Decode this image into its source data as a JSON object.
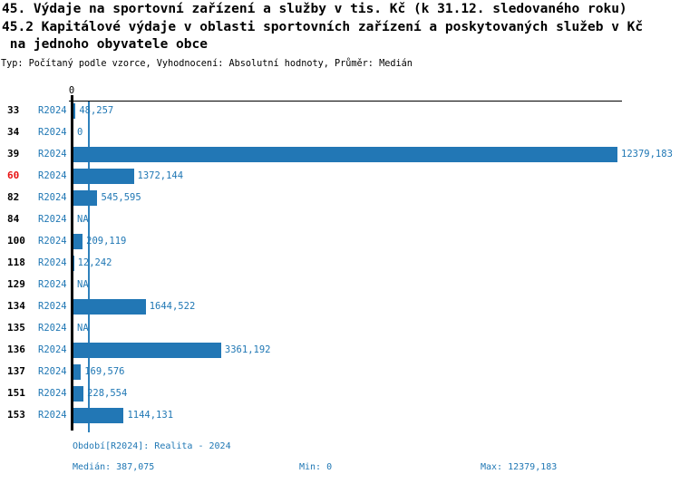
{
  "chart_data": {
    "type": "bar",
    "orientation": "horizontal",
    "title_lines": [
      "45. Výdaje na sportovní zařízení a služby v tis. Kč (k 31.12. sledovaného roku)",
      "45.2 Kapitálové výdaje v oblasti sportovních zařízení a poskytovaných služeb v Kč",
      " na jednoho obyvatele obce"
    ],
    "subtitle": "Typ: Počítaný podle vzorce, Vyhodnocení: Absolutní hodnoty, Průměr: Medián",
    "axis": {
      "zero_tick_label": "0",
      "xlim": [
        0,
        12379.183
      ],
      "grid": false
    },
    "median_line_value": 387.075,
    "series_name": "R2024",
    "rows": [
      {
        "id": "33",
        "period": "R2024",
        "value": 48.257,
        "value_label": "48,257",
        "highlight": false
      },
      {
        "id": "34",
        "period": "R2024",
        "value": 0,
        "value_label": "0",
        "highlight": false
      },
      {
        "id": "39",
        "period": "R2024",
        "value": 12379.183,
        "value_label": "12379,183",
        "highlight": false
      },
      {
        "id": "60",
        "period": "R2024",
        "value": 1372.144,
        "value_label": "1372,144",
        "highlight": true
      },
      {
        "id": "82",
        "period": "R2024",
        "value": 545.595,
        "value_label": "545,595",
        "highlight": false
      },
      {
        "id": "84",
        "period": "R2024",
        "value": null,
        "value_label": "NA",
        "highlight": false
      },
      {
        "id": "100",
        "period": "R2024",
        "value": 209.119,
        "value_label": "209,119",
        "highlight": false
      },
      {
        "id": "118",
        "period": "R2024",
        "value": 12.242,
        "value_label": "12,242",
        "highlight": false
      },
      {
        "id": "129",
        "period": "R2024",
        "value": null,
        "value_label": "NA",
        "highlight": false
      },
      {
        "id": "134",
        "period": "R2024",
        "value": 1644.522,
        "value_label": "1644,522",
        "highlight": false
      },
      {
        "id": "135",
        "period": "R2024",
        "value": null,
        "value_label": "NA",
        "highlight": false
      },
      {
        "id": "136",
        "period": "R2024",
        "value": 3361.192,
        "value_label": "3361,192",
        "highlight": false
      },
      {
        "id": "137",
        "period": "R2024",
        "value": 169.576,
        "value_label": "169,576",
        "highlight": false
      },
      {
        "id": "151",
        "period": "R2024",
        "value": 228.554,
        "value_label": "228,554",
        "highlight": false
      },
      {
        "id": "153",
        "period": "R2024",
        "value": 1144.131,
        "value_label": "1144,131",
        "highlight": false
      }
    ],
    "summary": {
      "median": 387.075,
      "min": 0,
      "max": 12379.183
    },
    "footer": {
      "period_caption": "Období[R2024]: Realita - 2024",
      "median_caption": "Medián: 387,075",
      "min_caption": "Min: 0",
      "max_caption": "Max: 12379,183"
    }
  },
  "colors": {
    "bar_blue": "#2277b5",
    "text_blue": "#1f77b4",
    "median_line_blue": "#2f81bc",
    "highlight_red": "#e81212",
    "axis_black": "#000000"
  }
}
